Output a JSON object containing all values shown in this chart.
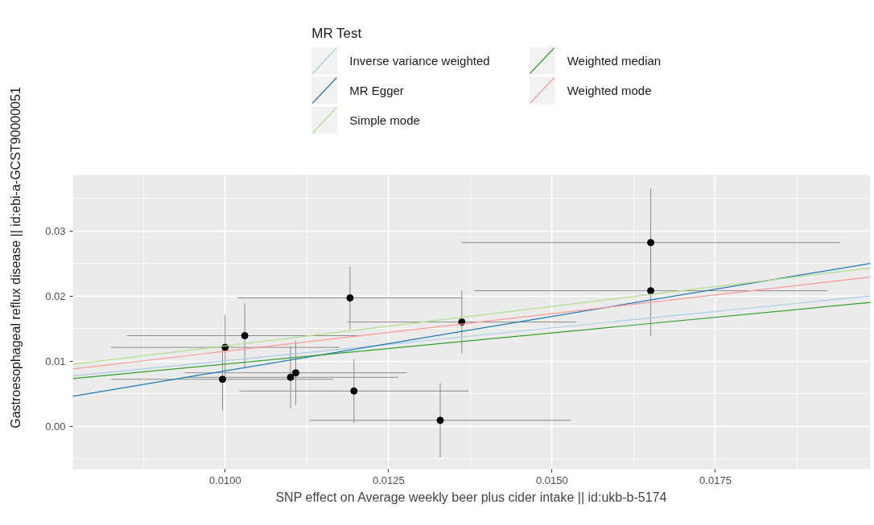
{
  "chart_data": {
    "type": "scatter",
    "xlabel": "SNP effect on Average weekly beer plus cider intake || id:ukb-b-5174",
    "ylabel": "Gastroesophageal reflux disease || id:ebi-a-GCST90000051",
    "legend_title": "MR Test",
    "legend": "top",
    "grid": true,
    "xlim": [
      0.00767,
      0.01987
    ],
    "ylim": [
      -0.0066,
      0.0386
    ],
    "xticks": [
      {
        "value": 0.01,
        "label": "0.0100"
      },
      {
        "value": 0.0125,
        "label": "0.0125"
      },
      {
        "value": 0.015,
        "label": "0.0150"
      },
      {
        "value": 0.0175,
        "label": "0.0175"
      }
    ],
    "yticks": [
      {
        "value": 0,
        "label": "0.00"
      },
      {
        "value": 0.01,
        "label": "0.01"
      },
      {
        "value": 0.02,
        "label": "0.02"
      },
      {
        "value": 0.03,
        "label": "0.03"
      }
    ],
    "series": [
      {
        "type": "scatter",
        "marker": "circle",
        "color": "#000000",
        "x": [
          0.00996,
          0.01,
          0.0103,
          0.011,
          0.01108,
          0.01191,
          0.01197,
          0.01329,
          0.01362,
          0.01651,
          0.01651
        ],
        "values": [
          0.0072,
          0.0121,
          0.0139,
          0.0075,
          0.0082,
          0.0197,
          0.0054,
          0.0009,
          0.016,
          0.0282,
          0.0208
        ],
        "errors": [
          0.0048,
          0.005,
          0.005,
          0.0048,
          0.0049,
          0.0048,
          0.0049,
          0.0057,
          0.0048,
          0.0083,
          0.007
        ],
        "xerrors": [
          0.0017,
          0.00175,
          0.0018,
          0.00165,
          0.0017,
          0.00172,
          0.00175,
          0.002,
          0.00175,
          0.0029,
          0.0027
        ]
      },
      {
        "type": "line",
        "name": "Inverse variance weighted",
        "color": "#a6cee3",
        "x": [
          0.00767,
          0.01987
        ],
        "values": [
          0.0077,
          0.02
        ]
      },
      {
        "type": "line",
        "name": "MR Egger",
        "color": "#1f78b4",
        "x": [
          0.00767,
          0.01987
        ],
        "values": [
          0.0046,
          0.025
        ]
      },
      {
        "type": "line",
        "name": "Simple mode",
        "color": "#b2df8a",
        "x": [
          0.00767,
          0.01987
        ],
        "values": [
          0.0095,
          0.0243
        ]
      },
      {
        "type": "line",
        "name": "Weighted median",
        "color": "#33a02c",
        "x": [
          0.00767,
          0.01987
        ],
        "values": [
          0.0073,
          0.019
        ]
      },
      {
        "type": "line",
        "name": "Weighted mode",
        "color": "#fb9a99",
        "x": [
          0.00767,
          0.01987
        ],
        "values": [
          0.0088,
          0.0229
        ]
      }
    ]
  }
}
